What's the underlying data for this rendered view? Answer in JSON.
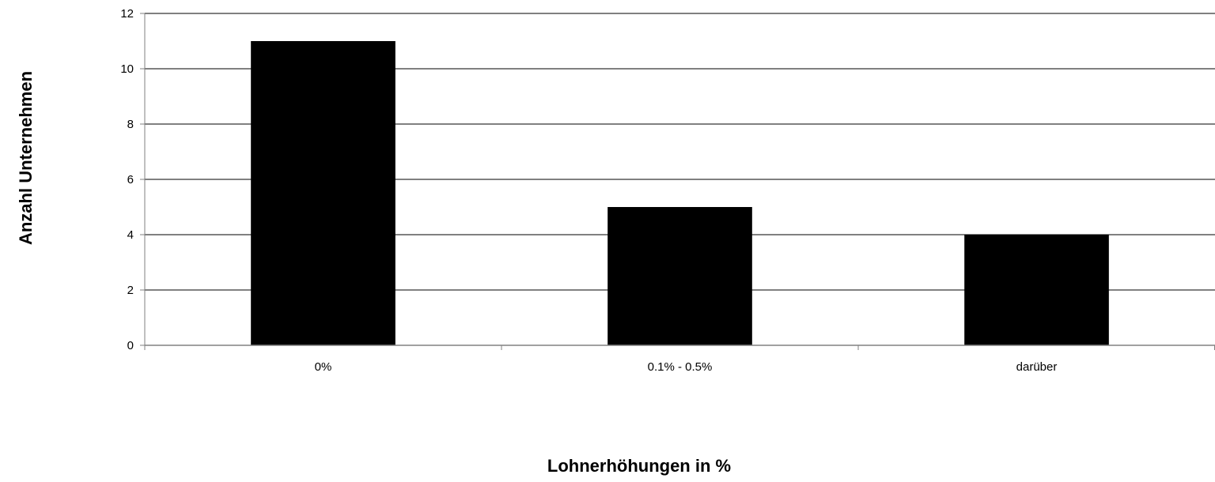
{
  "chart_data": {
    "type": "bar",
    "categories": [
      "0%",
      "0.1% - 0.5%",
      "darüber"
    ],
    "values": [
      11,
      5,
      4
    ],
    "title": "",
    "xlabel": "Lohnerhöhungen in %",
    "ylabel": "Anzahl Unternehmen",
    "ylim": [
      0,
      12
    ],
    "yticks": [
      0,
      2,
      4,
      6,
      8,
      10,
      12
    ],
    "grid": true,
    "legend": "none",
    "colors": {
      "bar": "#000000",
      "grid": "#000000",
      "axis": "#808080"
    }
  }
}
